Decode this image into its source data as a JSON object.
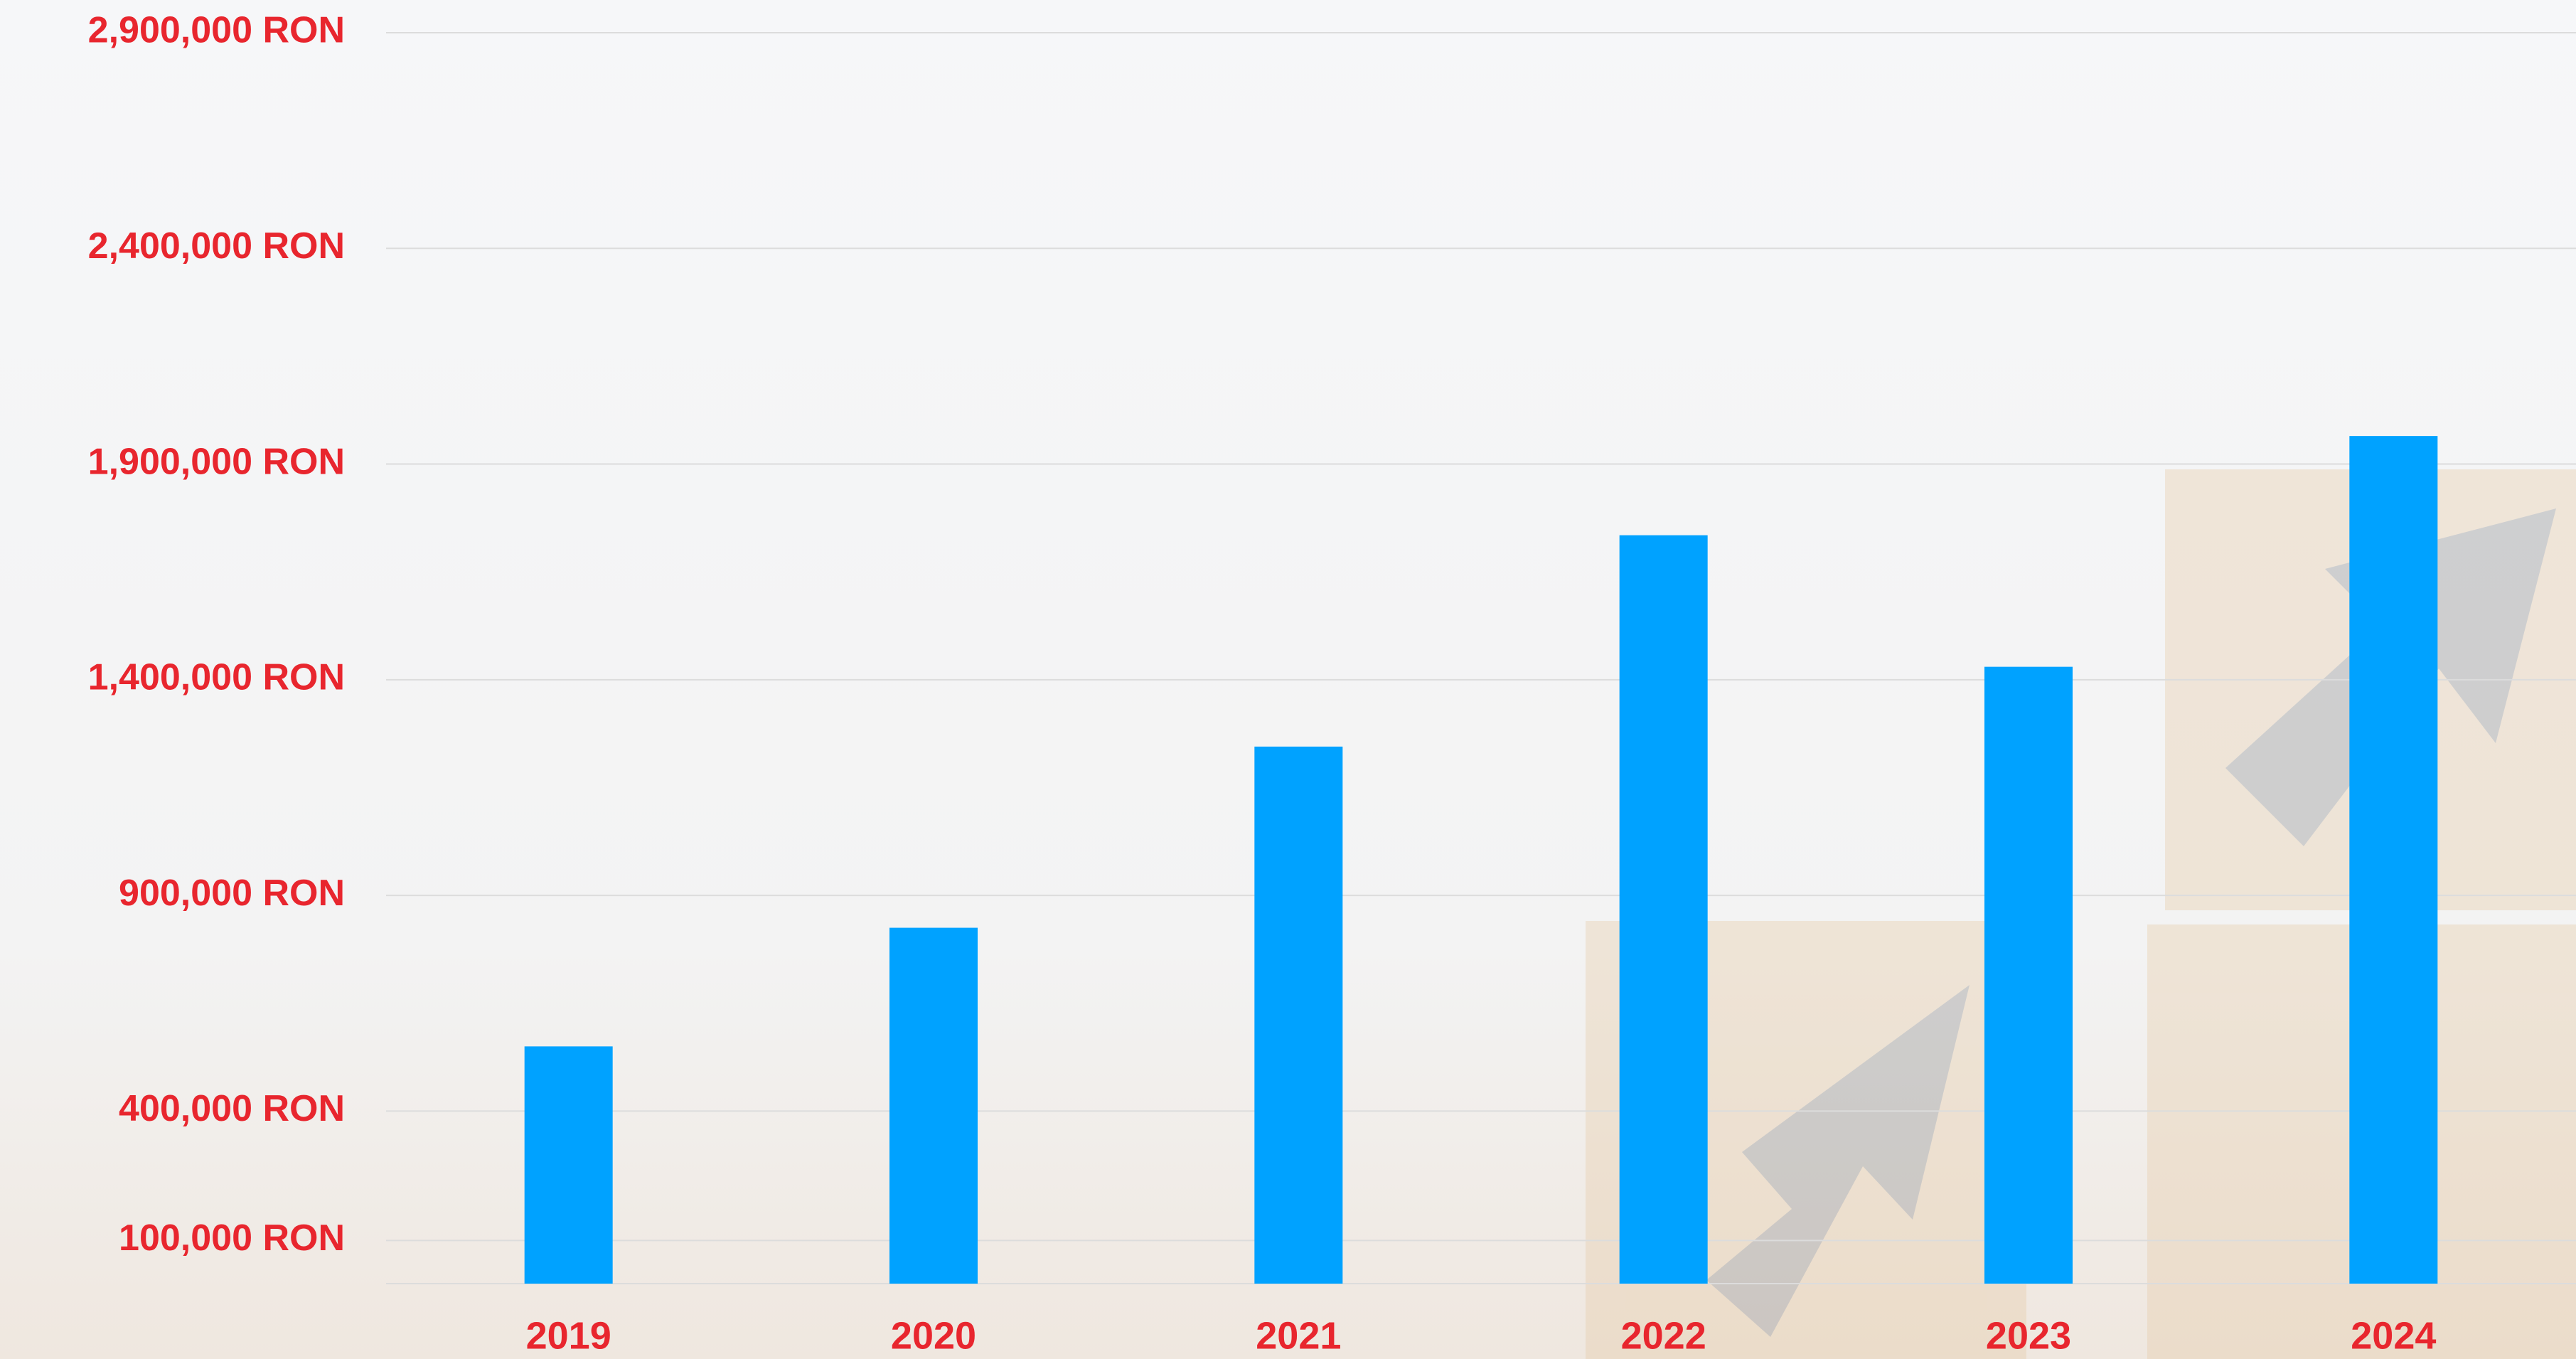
{
  "chart_data": {
    "type": "bar",
    "categories": [
      "2019",
      "2020",
      "2021",
      "2022",
      "2023",
      "2024"
    ],
    "values": [
      550000,
      825000,
      1245000,
      1735000,
      1430000,
      1965000
    ],
    "color": "#00a2ff",
    "ylim": [
      0,
      2900000
    ],
    "yticks": [
      {
        "value": 100000,
        "label": "100,000 RON"
      },
      {
        "value": 400000,
        "label": "400,000 RON"
      },
      {
        "value": 900000,
        "label": "900,000 RON"
      },
      {
        "value": 1400000,
        "label": "1,400,000 RON"
      },
      {
        "value": 1900000,
        "label": "1,900,000 RON"
      },
      {
        "value": 2400000,
        "label": "2,400,000 RON"
      },
      {
        "value": 2900000,
        "label": "2,900,000 RON"
      }
    ],
    "grid": true
  }
}
